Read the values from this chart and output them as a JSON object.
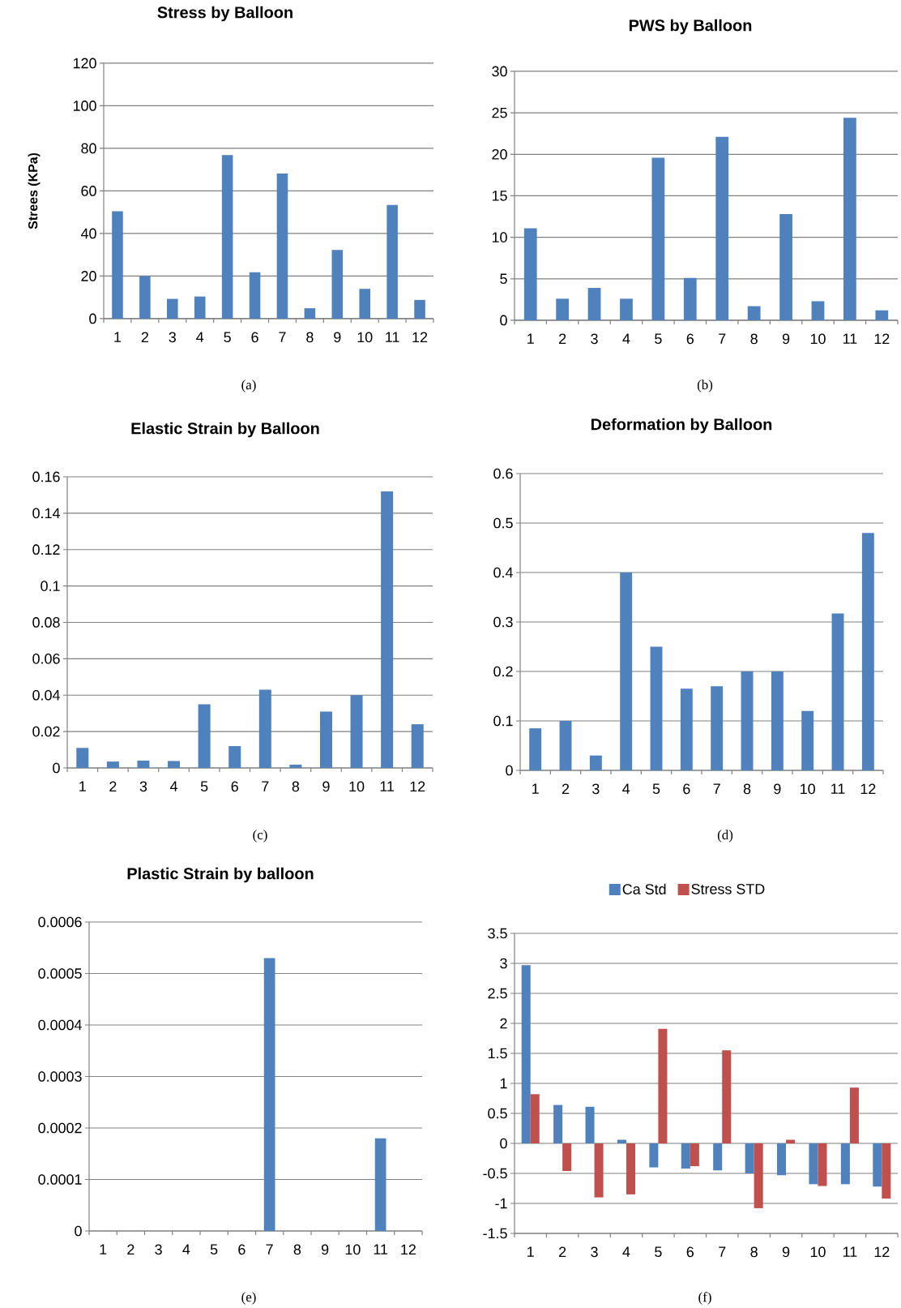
{
  "chart_data": [
    {
      "type": "bar",
      "title": "Stress by Balloon",
      "ylabel": "Strees (KPa)",
      "categories": [
        "1",
        "2",
        "3",
        "4",
        "5",
        "6",
        "7",
        "8",
        "9",
        "10",
        "11",
        "12"
      ],
      "values": [
        50.5,
        20,
        9.3,
        10.4,
        76.8,
        21.8,
        68.2,
        4.9,
        32.3,
        14,
        53.4,
        8.8
      ],
      "color": "#4f81bd",
      "ylim": [
        0,
        120
      ],
      "yticks": [
        0,
        20,
        40,
        60,
        80,
        100,
        120
      ],
      "grid": "y",
      "annotations": [
        "(a)"
      ]
    },
    {
      "type": "bar",
      "title": "PWS by Balloon",
      "categories": [
        "1",
        "2",
        "3",
        "4",
        "5",
        "6",
        "7",
        "8",
        "9",
        "10",
        "11",
        "12"
      ],
      "values": [
        11.1,
        2.6,
        3.9,
        2.6,
        19.6,
        5.1,
        22.1,
        1.7,
        12.8,
        2.3,
        24.4,
        1.2
      ],
      "color": "#4f81bd",
      "ylim": [
        0,
        30
      ],
      "yticks": [
        0,
        5,
        10,
        15,
        20,
        25,
        30
      ],
      "grid": "y",
      "annotations": [
        "(b)"
      ]
    },
    {
      "type": "bar",
      "title": "Elastic Strain by Balloon",
      "categories": [
        "1",
        "2",
        "3",
        "4",
        "5",
        "6",
        "7",
        "8",
        "9",
        "10",
        "11",
        "12"
      ],
      "values": [
        0.011,
        0.0035,
        0.004,
        0.0038,
        0.035,
        0.012,
        0.043,
        0.0018,
        0.031,
        0.04,
        0.152,
        0.024
      ],
      "color": "#4f81bd",
      "ylim": [
        0,
        0.16
      ],
      "yticks": [
        0,
        0.02,
        0.04,
        0.06,
        0.08,
        0.1,
        0.12,
        0.14,
        0.16
      ],
      "grid": "y",
      "annotations": [
        "(c)"
      ]
    },
    {
      "type": "bar",
      "title": "Deformation by Balloon",
      "categories": [
        "1",
        "2",
        "3",
        "4",
        "5",
        "6",
        "7",
        "8",
        "9",
        "10",
        "11",
        "12"
      ],
      "values": [
        0.085,
        0.1,
        0.03,
        0.4,
        0.25,
        0.165,
        0.17,
        0.2,
        0.2,
        0.12,
        0.317,
        0.48
      ],
      "color": "#4f81bd",
      "ylim": [
        0,
        0.6
      ],
      "yticks": [
        0,
        0.1,
        0.2,
        0.3,
        0.4,
        0.5,
        0.6
      ],
      "grid": "y",
      "annotations": [
        "(d)"
      ]
    },
    {
      "type": "bar",
      "title": "Plastic Strain by balloon",
      "categories": [
        "1",
        "2",
        "3",
        "4",
        "5",
        "6",
        "7",
        "8",
        "9",
        "10",
        "11",
        "12"
      ],
      "values": [
        0,
        0,
        0,
        0,
        0,
        0,
        0.00053,
        0,
        0,
        0,
        0.00018,
        0
      ],
      "color": "#4f81bd",
      "ylim": [
        0,
        0.0006
      ],
      "yticks": [
        0,
        0.0001,
        0.0002,
        0.0003,
        0.0004,
        0.0005,
        0.0006
      ],
      "grid": "y",
      "annotations": [
        "(e)"
      ]
    },
    {
      "type": "bar",
      "categories": [
        "1",
        "2",
        "3",
        "4",
        "5",
        "6",
        "7",
        "8",
        "9",
        "10",
        "11",
        "12"
      ],
      "series": [
        {
          "name": "Ca Std",
          "color": "#4f81bd",
          "values": [
            2.97,
            0.64,
            0.61,
            0.06,
            -0.4,
            -0.42,
            -0.45,
            -0.5,
            -0.53,
            -0.68,
            -0.68,
            -0.72
          ]
        },
        {
          "name": "Stress STD",
          "color": "#c0504d",
          "values": [
            0.82,
            -0.46,
            -0.9,
            -0.85,
            1.91,
            -0.38,
            1.55,
            -1.08,
            0.06,
            -0.71,
            0.93,
            -0.92
          ]
        }
      ],
      "ylim": [
        -1.5,
        3.5
      ],
      "yticks": [
        -1.5,
        -1,
        -0.5,
        0,
        0.5,
        1,
        1.5,
        2,
        2.5,
        3,
        3.5
      ],
      "grid": "y",
      "legend": "top",
      "annotations": [
        "(f)"
      ]
    }
  ]
}
